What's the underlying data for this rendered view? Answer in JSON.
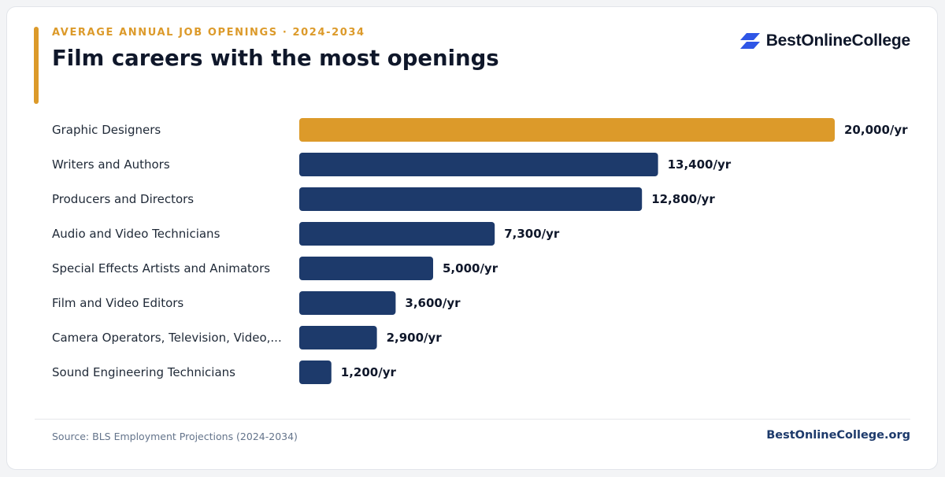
{
  "header": {
    "eyebrow": "AVERAGE ANNUAL JOB OPENINGS · 2024-2034",
    "title": "Film careers with the most openings"
  },
  "brand": {
    "name": "BestOnlineCollege",
    "icon": "parallelogram-stack-icon"
  },
  "footer": {
    "source": "Source: BLS Employment Projections (2024-2034)",
    "site": "BestOnlineCollege.org"
  },
  "colors": {
    "accent": "#dc9a2a",
    "primary": "#1d3a6b",
    "brand_icon": "#2f56e6"
  },
  "chart_data": {
    "type": "bar",
    "orientation": "horizontal",
    "categories": [
      "Graphic Designers",
      "Writers and Authors",
      "Producers and Directors",
      "Audio and Video Technicians",
      "Special Effects Artists and Animators",
      "Film and Video Editors",
      "Camera Operators, Television, Video,...",
      "Sound Engineering Technicians"
    ],
    "values": [
      20000,
      13400,
      12800,
      7300,
      5000,
      3600,
      2900,
      1200
    ],
    "value_labels": [
      "20,000/yr",
      "13,400/yr",
      "12,800/yr",
      "7,300/yr",
      "5,000/yr",
      "3,600/yr",
      "2,900/yr",
      "1,200/yr"
    ],
    "highlight_index": 0,
    "xlim": [
      0,
      20000
    ],
    "grid": false,
    "legend": "none"
  }
}
